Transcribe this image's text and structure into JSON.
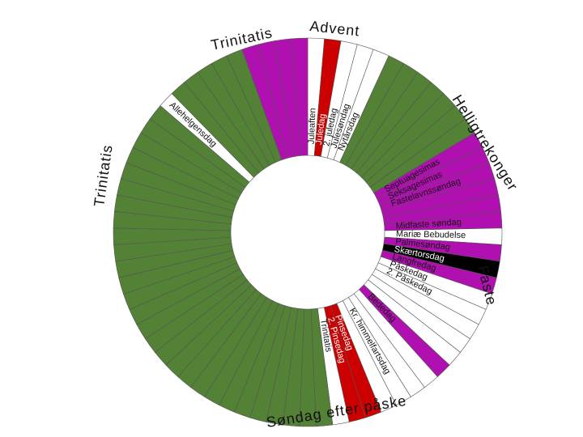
{
  "colors": {
    "green": "#538135",
    "purple": "#b010b0",
    "red": "#cc0000",
    "white": "#ffffff",
    "black": "#000000",
    "edge": "#555555"
  },
  "period_labels": [
    {
      "id": "advent",
      "text": "Advent"
    },
    {
      "id": "trinitatis-top",
      "text": "Trinitatis"
    },
    {
      "id": "trinitatis-left",
      "text": "Trinitatis"
    },
    {
      "id": "helligtrekonger",
      "text": "Helligtrekonger"
    },
    {
      "id": "faste",
      "text": "Faste"
    },
    {
      "id": "sondag-efter-paaske",
      "text": "Søndag efter påske"
    }
  ],
  "segments": [
    {
      "color": "white",
      "label": "Juleaften"
    },
    {
      "color": "red",
      "label": "Juledag"
    },
    {
      "color": "white",
      "label": "2. juledag"
    },
    {
      "color": "white",
      "label": "Julesøndag"
    },
    {
      "color": "white",
      "label": "Nytårsdag"
    },
    {
      "color": "green",
      "label": ""
    },
    {
      "color": "green",
      "label": ""
    },
    {
      "color": "green",
      "label": ""
    },
    {
      "color": "green",
      "label": ""
    },
    {
      "color": "green",
      "label": ""
    },
    {
      "color": "green",
      "label": ""
    },
    {
      "color": "green",
      "label": ""
    },
    {
      "color": "purple",
      "label": "Septuagesimas"
    },
    {
      "color": "purple",
      "label": "Seksagesimas"
    },
    {
      "color": "purple",
      "label": "Fastelavnssøndag"
    },
    {
      "color": "purple",
      "label": ""
    },
    {
      "color": "purple",
      "label": ""
    },
    {
      "color": "purple",
      "label": "Midfaste søndag"
    },
    {
      "color": "white",
      "label": "Mariæ Bebudelse"
    },
    {
      "color": "purple",
      "label": "Palmesøndag"
    },
    {
      "color": "black",
      "label": "Skærtorsdag"
    },
    {
      "color": "purple",
      "label": "Langfredag"
    },
    {
      "color": "white",
      "label": "Påskedag"
    },
    {
      "color": "white",
      "label": "2. Påskedag"
    },
    {
      "color": "white",
      "label": ""
    },
    {
      "color": "white",
      "label": ""
    },
    {
      "color": "white",
      "label": ""
    },
    {
      "color": "purple",
      "label": "Bededag"
    },
    {
      "color": "white",
      "label": ""
    },
    {
      "color": "white",
      "label": ""
    },
    {
      "color": "white",
      "label": "Kr. himmelfartsdag"
    },
    {
      "color": "white",
      "label": ""
    },
    {
      "color": "red",
      "label": "Pinsedag"
    },
    {
      "color": "red",
      "label": "2. Pinsedag"
    },
    {
      "color": "white",
      "label": "Trinitatis"
    },
    {
      "color": "green",
      "label": ""
    },
    {
      "color": "green",
      "label": ""
    },
    {
      "color": "green",
      "label": ""
    },
    {
      "color": "green",
      "label": ""
    },
    {
      "color": "green",
      "label": ""
    },
    {
      "color": "green",
      "label": ""
    },
    {
      "color": "green",
      "label": ""
    },
    {
      "color": "green",
      "label": ""
    },
    {
      "color": "green",
      "label": ""
    },
    {
      "color": "green",
      "label": ""
    },
    {
      "color": "green",
      "label": ""
    },
    {
      "color": "green",
      "label": ""
    },
    {
      "color": "green",
      "label": ""
    },
    {
      "color": "green",
      "label": ""
    },
    {
      "color": "green",
      "label": ""
    },
    {
      "color": "green",
      "label": ""
    },
    {
      "color": "green",
      "label": ""
    },
    {
      "color": "green",
      "label": ""
    },
    {
      "color": "green",
      "label": ""
    },
    {
      "color": "green",
      "label": ""
    },
    {
      "color": "green",
      "label": ""
    },
    {
      "color": "green",
      "label": ""
    },
    {
      "color": "green",
      "label": ""
    },
    {
      "color": "green",
      "label": ""
    },
    {
      "color": "green",
      "label": ""
    },
    {
      "color": "green",
      "label": ""
    },
    {
      "color": "green",
      "label": ""
    },
    {
      "color": "green",
      "label": ""
    },
    {
      "color": "white",
      "label": "Allehelgensdag"
    },
    {
      "color": "green",
      "label": ""
    },
    {
      "color": "green",
      "label": ""
    },
    {
      "color": "green",
      "label": ""
    },
    {
      "color": "green",
      "label": ""
    },
    {
      "color": "green",
      "label": ""
    },
    {
      "color": "purple",
      "label": ""
    },
    {
      "color": "purple",
      "label": ""
    },
    {
      "color": "purple",
      "label": ""
    },
    {
      "color": "purple",
      "label": ""
    }
  ]
}
